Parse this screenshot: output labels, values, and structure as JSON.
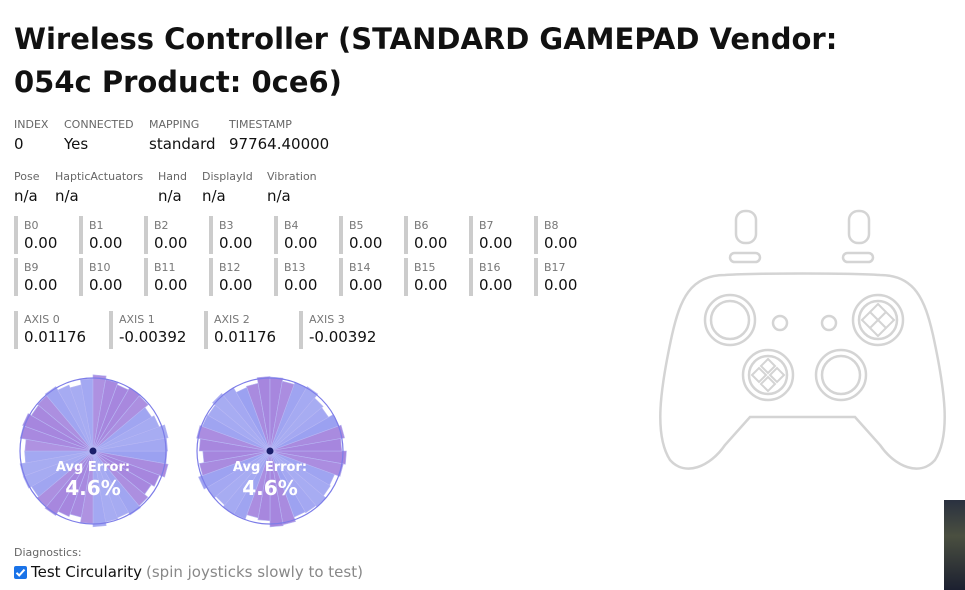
{
  "page": {
    "title": "Wireless Controller (STANDARD GAMEPAD Vendor: 054c Product: 0ce6)"
  },
  "info": {
    "index_label": "INDEX",
    "index": "0",
    "connected_label": "CONNECTED",
    "connected": "Yes",
    "mapping_label": "MAPPING",
    "mapping": "standard",
    "timestamp_label": "TIMESTAMP",
    "timestamp": "97764.40000"
  },
  "extras": {
    "pose_label": "Pose",
    "pose": "n/a",
    "haptic_label": "HapticActuators",
    "haptic": "n/a",
    "hand_label": "Hand",
    "hand": "n/a",
    "display_label": "DisplayId",
    "display": "n/a",
    "vibration_label": "Vibration",
    "vibration": "n/a"
  },
  "buttons": [
    {
      "label": "B0",
      "value": "0.00"
    },
    {
      "label": "B1",
      "value": "0.00"
    },
    {
      "label": "B2",
      "value": "0.00"
    },
    {
      "label": "B3",
      "value": "0.00"
    },
    {
      "label": "B4",
      "value": "0.00"
    },
    {
      "label": "B5",
      "value": "0.00"
    },
    {
      "label": "B6",
      "value": "0.00"
    },
    {
      "label": "B7",
      "value": "0.00"
    },
    {
      "label": "B8",
      "value": "0.00"
    },
    {
      "label": "B9",
      "value": "0.00"
    },
    {
      "label": "B10",
      "value": "0.00"
    },
    {
      "label": "B11",
      "value": "0.00"
    },
    {
      "label": "B12",
      "value": "0.00"
    },
    {
      "label": "B13",
      "value": "0.00"
    },
    {
      "label": "B14",
      "value": "0.00"
    },
    {
      "label": "B15",
      "value": "0.00"
    },
    {
      "label": "B16",
      "value": "0.00"
    },
    {
      "label": "B17",
      "value": "0.00"
    }
  ],
  "axes": [
    {
      "label": "AXIS 0",
      "value": "0.01176"
    },
    {
      "label": "AXIS 1",
      "value": "-0.00392"
    },
    {
      "label": "AXIS 2",
      "value": "0.01176"
    },
    {
      "label": "AXIS 3",
      "value": "-0.00392"
    }
  ],
  "circularity": [
    {
      "error_label": "Avg Error:",
      "error_value": "4.6%"
    },
    {
      "error_label": "Avg Error:",
      "error_value": "4.6%"
    }
  ],
  "diagnostics": {
    "label": "Diagnostics:",
    "checkbox_label": "Test Circularity",
    "hint": "(spin joysticks slowly to test)",
    "checked": true
  },
  "colors": {
    "accent": "#1a73e8",
    "circle_fill_blue": "#8a90ee",
    "circle_fill_purple": "#a17fdc",
    "gamepad_outline": "#d4d4d4"
  },
  "icons": {
    "gamepad": "gamepad-diagram-icon",
    "checkbox": "checkmark-icon"
  }
}
